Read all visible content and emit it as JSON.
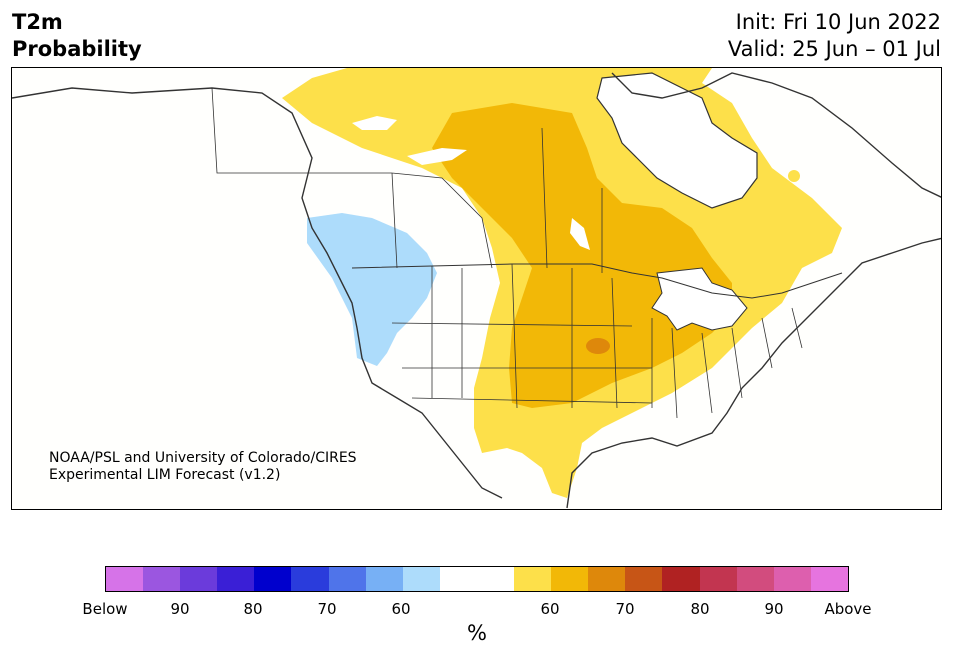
{
  "header": {
    "title_line1": "T2m",
    "title_line2": "Probability",
    "init": "Init: Fri 10 Jun 2022",
    "valid": "Valid: 25 Jun – 01 Jul"
  },
  "credit": {
    "line1": "NOAA/PSL and University of Colorado/CIRES",
    "line2": "Experimental LIM Forecast (v1.2)"
  },
  "colorbar": {
    "colors": [
      "#d673e8",
      "#9b56e0",
      "#6b3bdb",
      "#3a1fd6",
      "#0000cd",
      "#2a3cdc",
      "#4f74ea",
      "#77b0f5",
      "#addcfb",
      "#ffffff",
      "#ffffff",
      "#fde04a",
      "#f2b807",
      "#de880b",
      "#c75516",
      "#b02222",
      "#c23550",
      "#d24c7e",
      "#dd5fae",
      "#e674df"
    ],
    "tick_labels": [
      "Below",
      "90",
      "80",
      "70",
      "60",
      "60",
      "70",
      "80",
      "90",
      "Above"
    ],
    "unit": "%"
  },
  "map": {
    "field_colors": {
      "above_50_60": "#fde04a",
      "above_60_70": "#f2b807",
      "above_70_80": "#de880b",
      "below_50_60": "#addcfb",
      "water": "#ffffff",
      "boundary": "#333333"
    }
  }
}
